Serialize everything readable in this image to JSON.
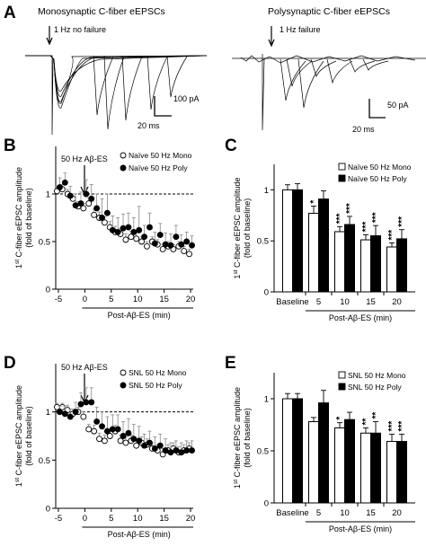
{
  "panels": {
    "A": {
      "label": "A",
      "left_title": "Monosynaptic C-fiber eEPSCs",
      "left_note": "1 Hz no failure",
      "left_scale_y": "100 pA",
      "left_scale_x": "20 ms",
      "right_title": "Polysynaptic C-fiber eEPSCs",
      "right_note": "1 Hz failure",
      "right_scale_y": "50 pA",
      "right_scale_x": "20 ms"
    },
    "B": {
      "label": "B",
      "annotation": "50 Hz Aβ-ES"
    },
    "C": {
      "label": "C"
    },
    "D": {
      "label": "D",
      "annotation": "50 Hz Aβ-ES"
    },
    "E": {
      "label": "E"
    }
  },
  "chart_data": [
    {
      "panel": "B",
      "type": "scatter",
      "ylabel_main": "C-fiber eEPSC amplitude",
      "ylabel_sup": "st",
      "ylabel_pre": "1",
      "ylabel_sub": "(fold of baseline)",
      "xlabel": "Post-Aβ-ES (min)",
      "xticks": [
        "-5",
        "0",
        "5",
        "10",
        "15",
        "20"
      ],
      "yticks": [
        "0",
        "0.5",
        "1"
      ],
      "xlim": [
        -5.5,
        20.5
      ],
      "ylim": [
        0,
        1.5
      ],
      "baseline_y": 1,
      "series": [
        {
          "name": "Naïve 50 Hz Mono",
          "marker": "open",
          "x": [
            -5,
            -4,
            -3,
            -2,
            -1,
            0,
            1,
            2,
            3,
            4,
            5,
            6,
            7,
            8,
            9,
            10,
            11,
            12,
            13,
            14,
            15,
            16,
            17,
            18,
            19,
            20
          ],
          "y": [
            1.03,
            1.05,
            1.0,
            0.95,
            0.87,
            0.85,
            0.9,
            0.78,
            0.75,
            0.7,
            0.65,
            0.6,
            0.58,
            0.52,
            0.55,
            0.53,
            0.5,
            0.45,
            0.5,
            0.47,
            0.42,
            0.45,
            0.42,
            0.45,
            0.4,
            0.37
          ],
          "err": [
            0.05,
            0.05,
            0.05,
            0.05,
            0.05,
            0.05,
            0.06,
            0.06,
            0.06,
            0.06,
            0.06,
            0.06,
            0.06,
            0.06,
            0.06,
            0.06,
            0.05,
            0.05,
            0.05,
            0.05,
            0.05,
            0.05,
            0.05,
            0.05,
            0.05,
            0.05
          ]
        },
        {
          "name": "Naïve 50 Hz Poly",
          "marker": "filled",
          "x": [
            -5,
            -4,
            -3,
            -2,
            -1,
            0,
            1,
            2,
            3,
            4,
            5,
            6,
            7,
            8,
            9,
            10,
            11,
            12,
            13,
            14,
            15,
            16,
            17,
            18,
            19,
            20
          ],
          "y": [
            1.07,
            1.12,
            0.98,
            0.88,
            0.9,
            1.0,
            0.95,
            0.85,
            0.75,
            0.8,
            0.62,
            0.6,
            0.64,
            0.65,
            0.6,
            0.62,
            0.55,
            0.65,
            0.48,
            0.57,
            0.47,
            0.46,
            0.55,
            0.47,
            0.5,
            0.46
          ],
          "err": [
            0.1,
            0.1,
            0.1,
            0.12,
            0.12,
            0.15,
            0.15,
            0.15,
            0.2,
            0.2,
            0.15,
            0.15,
            0.15,
            0.15,
            0.15,
            0.25,
            0.12,
            0.15,
            0.12,
            0.12,
            0.12,
            0.12,
            0.12,
            0.1,
            0.1,
            0.1
          ]
        }
      ],
      "legend": "top-right"
    },
    {
      "panel": "C",
      "type": "bar",
      "ylabel_main": "C-fiber eEPSC amplitude",
      "ylabel_sup": "st",
      "ylabel_pre": "1",
      "ylabel_sub": "(fold of baseline)",
      "xlabel": "Post-Aβ-ES (min)",
      "categories": [
        "Baseline",
        "5",
        "10",
        "15",
        "20"
      ],
      "yticks": [
        "0",
        "0.5",
        "1"
      ],
      "ylim": [
        0,
        1.25
      ],
      "series": [
        {
          "name": "Naïve 50 Hz Mono",
          "fill": "#ffffff",
          "values": [
            1.0,
            0.77,
            0.59,
            0.51,
            0.44
          ],
          "err": [
            0.05,
            0.07,
            0.05,
            0.05,
            0.04
          ],
          "sig": [
            "",
            "*",
            "***",
            "***",
            "***"
          ]
        },
        {
          "name": "Naïve 50 Hz Poly",
          "fill": "#000000",
          "values": [
            1.0,
            0.91,
            0.66,
            0.55,
            0.52
          ],
          "err": [
            0.06,
            0.08,
            0.08,
            0.1,
            0.09
          ],
          "sig": [
            "",
            "",
            "***",
            "***",
            "***"
          ]
        }
      ],
      "legend": "top-right"
    },
    {
      "panel": "D",
      "type": "scatter",
      "ylabel_main": "C-fiber eEPSC amplitude",
      "ylabel_sup": "st",
      "ylabel_pre": "1",
      "ylabel_sub": "(fold of baseline)",
      "xlabel": "Post-Aβ-ES (min)",
      "xticks": [
        "-5",
        "0",
        "5",
        "10",
        "15",
        "20"
      ],
      "yticks": [
        "0",
        "0.5",
        "1"
      ],
      "xlim": [
        -5.5,
        20.5
      ],
      "ylim": [
        0,
        1.5
      ],
      "baseline_y": 1,
      "series": [
        {
          "name": "SNL 50 Hz Mono",
          "marker": "open",
          "x": [
            -5,
            -4,
            -3,
            -2,
            -1,
            0,
            1,
            2,
            3,
            4,
            5,
            6,
            7,
            8,
            9,
            10,
            11,
            12,
            13,
            14,
            15,
            16,
            17,
            18,
            19,
            20
          ],
          "y": [
            1.05,
            1.05,
            1.02,
            0.98,
            1.0,
            0.95,
            0.82,
            0.8,
            0.72,
            0.7,
            0.75,
            0.8,
            0.7,
            0.68,
            0.7,
            0.65,
            0.68,
            0.66,
            0.62,
            0.6,
            0.56,
            0.6,
            0.62,
            0.58,
            0.6,
            0.62
          ],
          "err": [
            0.04,
            0.04,
            0.05,
            0.05,
            0.05,
            0.05,
            0.05,
            0.06,
            0.06,
            0.06,
            0.06,
            0.06,
            0.06,
            0.06,
            0.06,
            0.06,
            0.06,
            0.06,
            0.06,
            0.06,
            0.06,
            0.06,
            0.06,
            0.06,
            0.06,
            0.06
          ]
        },
        {
          "name": "SNL 50 Hz Poly",
          "marker": "filled",
          "x": [
            -5,
            -4,
            -3,
            -2,
            -1,
            0,
            1,
            2,
            3,
            4,
            5,
            6,
            7,
            8,
            9,
            10,
            11,
            12,
            13,
            14,
            15,
            16,
            17,
            18,
            19,
            20
          ],
          "y": [
            1.0,
            0.98,
            0.95,
            1.0,
            1.08,
            1.1,
            1.1,
            0.9,
            0.85,
            0.8,
            0.82,
            0.82,
            0.75,
            0.78,
            0.72,
            0.7,
            0.65,
            0.68,
            0.62,
            0.65,
            0.6,
            0.58,
            0.6,
            0.58,
            0.6,
            0.6
          ],
          "err": [
            0.06,
            0.08,
            0.08,
            0.1,
            0.12,
            0.15,
            0.15,
            0.15,
            0.15,
            0.15,
            0.15,
            0.15,
            0.15,
            0.15,
            0.15,
            0.15,
            0.12,
            0.12,
            0.12,
            0.12,
            0.12,
            0.1,
            0.1,
            0.1,
            0.1,
            0.1
          ]
        }
      ],
      "legend": "top-right"
    },
    {
      "panel": "E",
      "type": "bar",
      "ylabel_main": "C-fiber eEPSC amplitude",
      "ylabel_sup": "st",
      "ylabel_pre": "1",
      "ylabel_sub": "(fold of baseline)",
      "xlabel": "Post-Aβ-ES (min)",
      "categories": [
        "Baseline",
        "5",
        "10",
        "15",
        "20"
      ],
      "yticks": [
        "0",
        "0.5",
        "1"
      ],
      "ylim": [
        0,
        1.25
      ],
      "series": [
        {
          "name": "SNL 50 Hz Mono",
          "fill": "#ffffff",
          "values": [
            1.0,
            0.78,
            0.72,
            0.67,
            0.59
          ],
          "err": [
            0.05,
            0.04,
            0.05,
            0.05,
            0.07
          ],
          "sig": [
            "",
            "",
            "*",
            "**",
            "***"
          ]
        },
        {
          "name": "SNL 50 Hz Poly",
          "fill": "#000000",
          "values": [
            1.0,
            0.96,
            0.8,
            0.67,
            0.59
          ],
          "err": [
            0.05,
            0.12,
            0.07,
            0.11,
            0.07
          ],
          "sig": [
            "",
            "",
            "",
            "**",
            "***"
          ]
        }
      ],
      "legend": "top-right"
    }
  ]
}
